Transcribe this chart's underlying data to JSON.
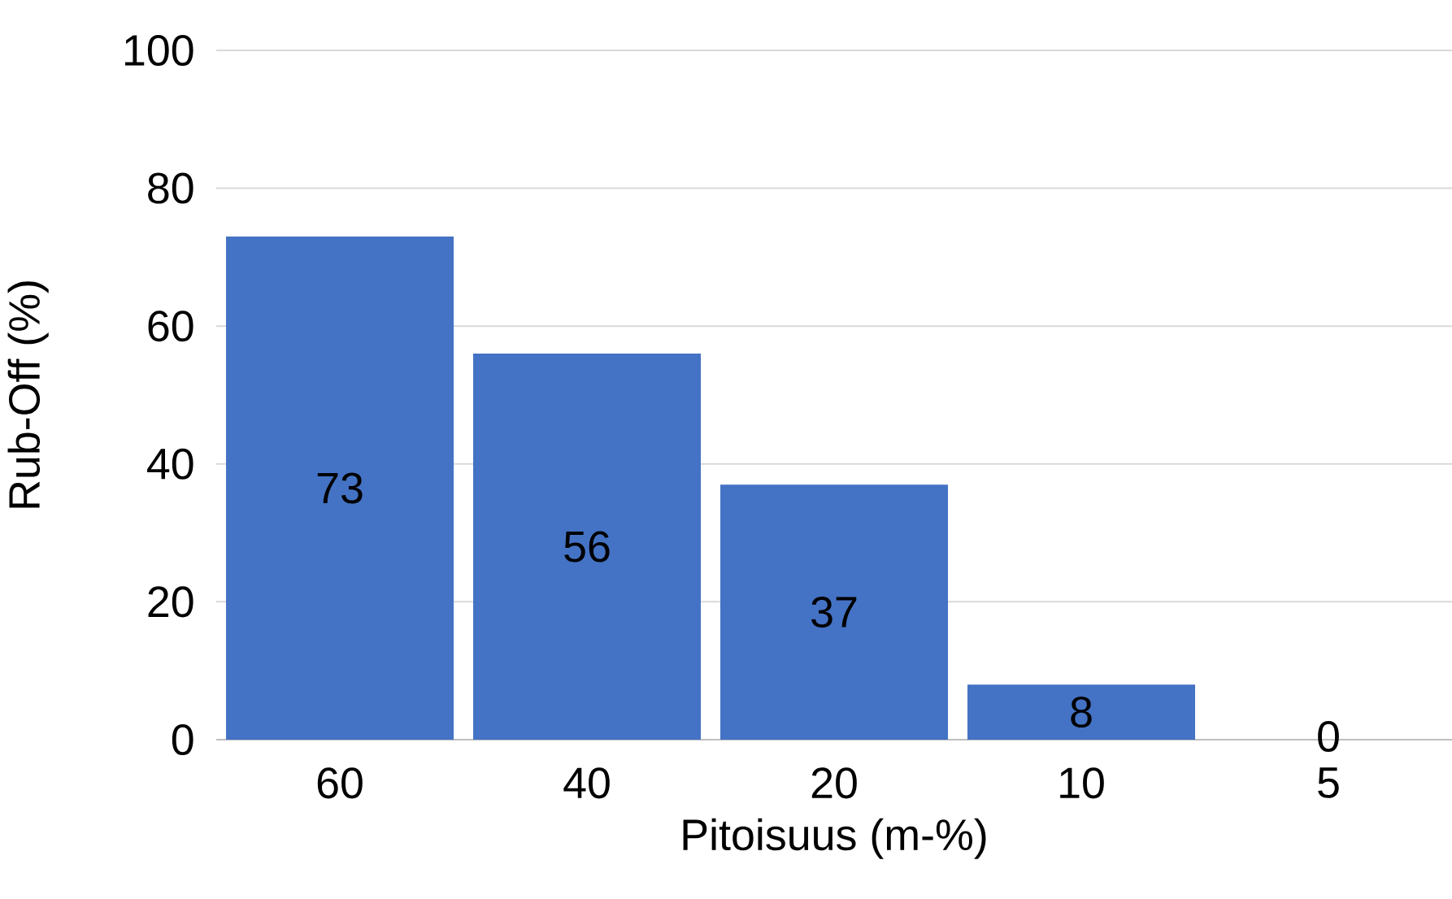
{
  "chart_data": {
    "type": "bar",
    "xlabel": "Pitoisuus (m-%)",
    "ylabel": "Rub-Off (%)",
    "categories": [
      "60",
      "40",
      "20",
      "10",
      "5"
    ],
    "values": [
      73,
      56,
      37,
      8,
      0
    ],
    "color": "#4472c4",
    "ylim": [
      0,
      100
    ],
    "yticks": [
      0,
      20,
      40,
      60,
      80,
      100
    ],
    "grid": "y",
    "data_labels": true
  }
}
